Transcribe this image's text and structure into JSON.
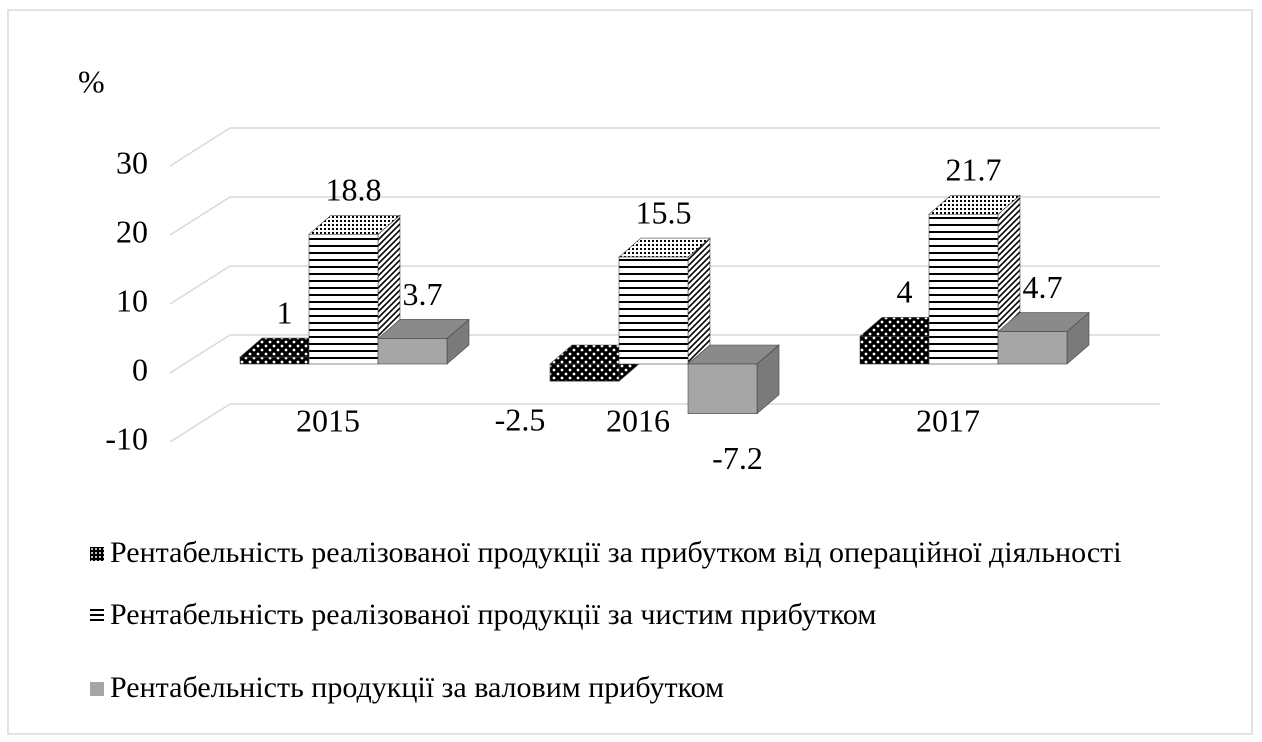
{
  "chart_data": {
    "type": "bar3d",
    "y_label": "%",
    "categories": [
      "2015",
      "2016",
      "2017"
    ],
    "series": [
      {
        "name": "Рентабельність реалізованої продукції за прибутком від операційної діяльності",
        "color": "#000000",
        "values": [
          1,
          -2.5,
          4
        ]
      },
      {
        "name": "Рентабельність реалізованої продукції за чистим прибутком",
        "color": "#000000",
        "values": [
          18.8,
          15.5,
          21.7
        ]
      },
      {
        "name": "Рентабельність продукції за валовим прибутком",
        "color": "#a6a6a6",
        "values": [
          3.7,
          -7.2,
          4.7
        ]
      }
    ],
    "ylim": [
      -10,
      30
    ],
    "yticks": [
      -10,
      0,
      10,
      20,
      30
    ],
    "grid": true,
    "legend": "bottom"
  }
}
